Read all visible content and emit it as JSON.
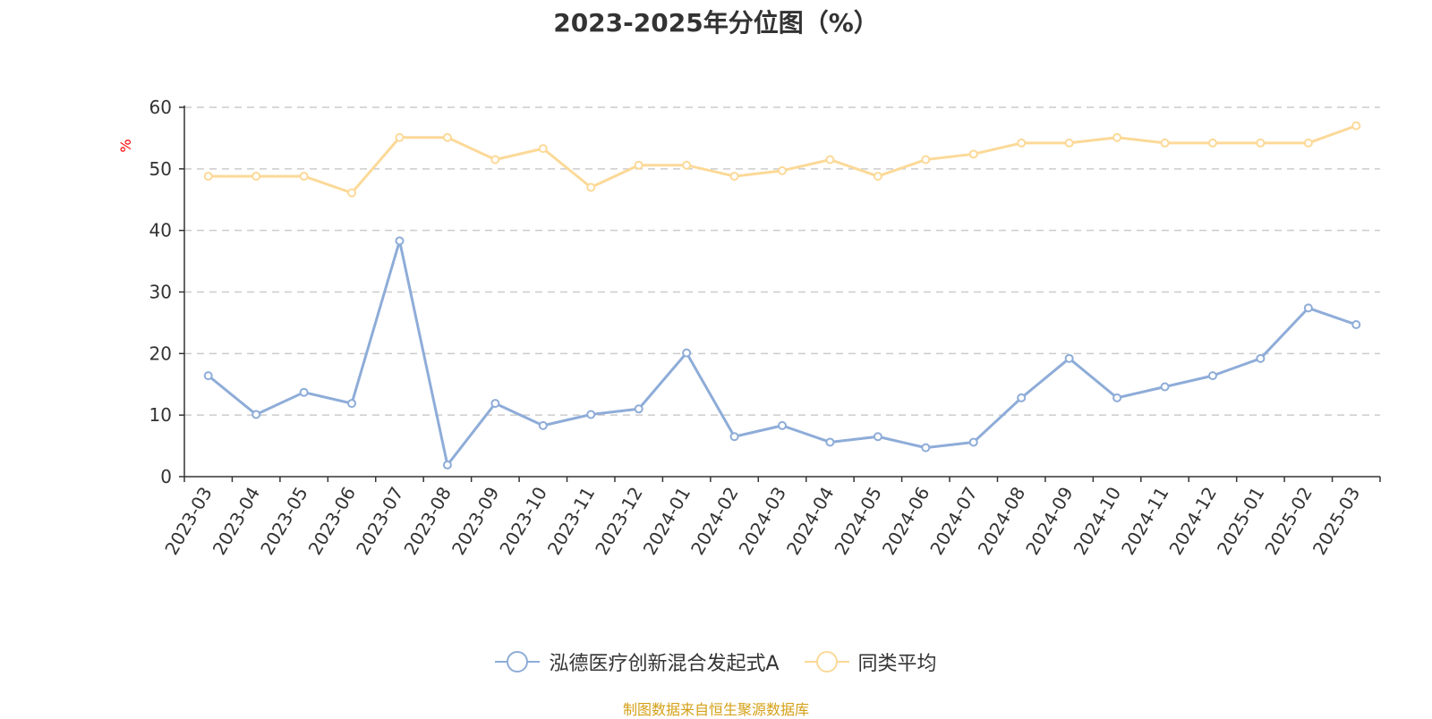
{
  "chart_data": {
    "type": "line",
    "title": "2023-2025年分位图（%）",
    "ylabel": "%",
    "xlabel": "",
    "ylim": [
      0,
      60
    ],
    "yticks": [
      0,
      10,
      20,
      30,
      40,
      50,
      60
    ],
    "grid": true,
    "legend_position": "bottom",
    "categories": [
      "2023-03",
      "2023-04",
      "2023-05",
      "2023-06",
      "2023-07",
      "2023-08",
      "2023-09",
      "2023-10",
      "2023-11",
      "2023-12",
      "2024-01",
      "2024-02",
      "2024-03",
      "2024-04",
      "2024-05",
      "2024-06",
      "2024-07",
      "2024-08",
      "2024-09",
      "2024-10",
      "2024-11",
      "2024-12",
      "2025-01",
      "2025-02",
      "2025-03"
    ],
    "series": [
      {
        "name": "泓德医疗创新混合发起式A",
        "color": "#8eacd8",
        "values": [
          16.4,
          10.1,
          13.7,
          11.9,
          38.3,
          1.9,
          11.9,
          8.3,
          10.1,
          11.0,
          20.1,
          6.5,
          8.3,
          5.6,
          6.5,
          4.7,
          5.6,
          12.8,
          19.2,
          12.8,
          14.6,
          16.4,
          19.2,
          27.4,
          24.7
        ]
      },
      {
        "name": "同类平均",
        "color": "#fcd998",
        "values": [
          48.8,
          48.8,
          48.8,
          46.1,
          55.1,
          55.1,
          51.5,
          53.3,
          47.0,
          50.6,
          50.6,
          48.8,
          49.7,
          51.5,
          48.8,
          51.5,
          52.4,
          54.2,
          54.2,
          55.1,
          54.2,
          54.2,
          54.2,
          54.2,
          57.0
        ]
      }
    ]
  },
  "source_text": "制图数据来自恒生聚源数据库",
  "colors": {
    "axis": "#333333",
    "grid": "#cccccc",
    "ylabel": "#ff0000",
    "source": "#d4a017"
  }
}
